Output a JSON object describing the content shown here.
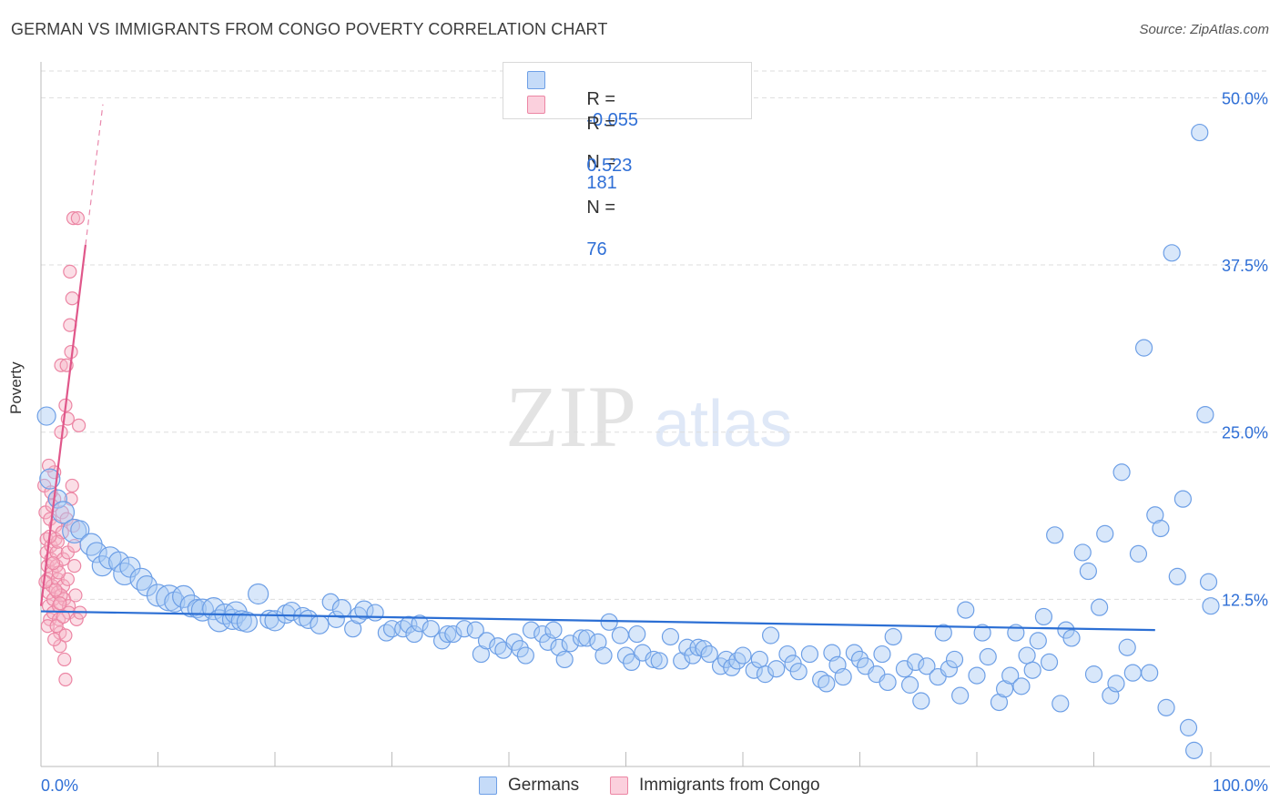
{
  "title": "GERMAN VS IMMIGRANTS FROM CONGO POVERTY CORRELATION CHART",
  "source": "Source: ZipAtlas.com",
  "watermark": {
    "zip": "ZIP",
    "atlas": "atlas"
  },
  "legend": {
    "rows": [
      {
        "r_label": "R =",
        "r_value": "-0.055",
        "n_label": "N =",
        "n_value": "181"
      },
      {
        "r_label": "R =",
        "r_value": "0.523",
        "n_label": "N =",
        "n_value": "76"
      }
    ]
  },
  "colors": {
    "blue_fill": "#a9c9f5",
    "blue_stroke": "#6d9fe6",
    "blue_line": "#2c6fd4",
    "pink_fill": "#f7b5c8",
    "pink_stroke": "#ec86a4",
    "pink_line": "#e0578a",
    "axis_label": "#2f6fd6",
    "grid": "#dddddd"
  },
  "chart_data": {
    "type": "scatter",
    "title": "GERMAN VS IMMIGRANTS FROM CONGO POVERTY CORRELATION CHART",
    "xlabel": "",
    "ylabel": "Poverty",
    "x_tick_labels": [
      "0.0%",
      "100.0%"
    ],
    "y_tick_labels": [
      "12.5%",
      "25.0%",
      "37.5%",
      "50.0%"
    ],
    "y_ticks": [
      12.5,
      25.0,
      37.5,
      50.0
    ],
    "xlim": [
      0,
      105
    ],
    "ylim": [
      0,
      52
    ],
    "grid": true,
    "legend_placement": "top-center",
    "series": [
      {
        "name": "Germans",
        "color": "#6d9fe6",
        "trend": {
          "x0": 0,
          "y0": 11.6,
          "x1": 100,
          "y1": 10.2
        },
        "points": [
          [
            0.5,
            26.2,
            10
          ],
          [
            0.8,
            21.5,
            11
          ],
          [
            1.5,
            20.0,
            10
          ],
          [
            2.0,
            19.0,
            12
          ],
          [
            3.0,
            17.6,
            13
          ],
          [
            3.5,
            17.7,
            10
          ],
          [
            4.5,
            16.6,
            12
          ],
          [
            5.0,
            16.0,
            11
          ],
          [
            5.5,
            15.0,
            11
          ],
          [
            6.2,
            15.6,
            12
          ],
          [
            7.0,
            15.3,
            11
          ],
          [
            7.5,
            14.4,
            12
          ],
          [
            8.0,
            14.9,
            11
          ],
          [
            9.0,
            14.0,
            12
          ],
          [
            9.5,
            13.5,
            11
          ],
          [
            10.5,
            12.8,
            12
          ],
          [
            11.5,
            12.6,
            14
          ],
          [
            12.0,
            12.3,
            11
          ],
          [
            12.8,
            12.7,
            12
          ],
          [
            13.5,
            12.0,
            12
          ],
          [
            14.0,
            11.8,
            10
          ],
          [
            14.5,
            11.7,
            12
          ],
          [
            15.5,
            11.8,
            12
          ],
          [
            16.0,
            10.9,
            12
          ],
          [
            16.5,
            11.4,
            11
          ],
          [
            17.2,
            11.0,
            11
          ],
          [
            17.5,
            11.5,
            12
          ],
          [
            18.0,
            10.9,
            11
          ],
          [
            18.5,
            10.8,
            11
          ],
          [
            19.5,
            12.9,
            11
          ],
          [
            20.5,
            11.0,
            10
          ],
          [
            21.0,
            10.9,
            11
          ],
          [
            22.0,
            11.4,
            10
          ],
          [
            22.5,
            11.6,
            10
          ],
          [
            23.5,
            11.2,
            10
          ],
          [
            24.0,
            11.0,
            10
          ],
          [
            25.0,
            10.6,
            10
          ],
          [
            26.0,
            12.3,
            9
          ],
          [
            26.5,
            11.0,
            9
          ],
          [
            27.0,
            11.8,
            10
          ],
          [
            28.0,
            10.3,
            9
          ],
          [
            28.5,
            11.3,
            9
          ],
          [
            29.0,
            11.7,
            10
          ],
          [
            30.0,
            11.5,
            9
          ],
          [
            31.0,
            10.0,
            9
          ],
          [
            31.5,
            10.3,
            9
          ],
          [
            32.5,
            10.3,
            9
          ],
          [
            33.0,
            10.6,
            9
          ],
          [
            33.5,
            9.9,
            9
          ],
          [
            34.0,
            10.7,
            9
          ],
          [
            35.0,
            10.3,
            9
          ],
          [
            36.0,
            9.4,
            9
          ],
          [
            36.5,
            9.9,
            9
          ],
          [
            37.0,
            9.9,
            9
          ],
          [
            38.0,
            10.3,
            9
          ],
          [
            39.0,
            10.2,
            9
          ],
          [
            39.5,
            8.4,
            9
          ],
          [
            40.0,
            9.4,
            9
          ],
          [
            41.0,
            9.0,
            9
          ],
          [
            41.5,
            8.7,
            9
          ],
          [
            42.5,
            9.3,
            9
          ],
          [
            43.0,
            8.8,
            9
          ],
          [
            43.5,
            8.3,
            9
          ],
          [
            44.0,
            10.2,
            9
          ],
          [
            45.0,
            9.9,
            9
          ],
          [
            45.5,
            9.3,
            9
          ],
          [
            46.0,
            10.2,
            9
          ],
          [
            46.5,
            8.9,
            9
          ],
          [
            47.0,
            8.0,
            9
          ],
          [
            47.5,
            9.2,
            9
          ],
          [
            48.5,
            9.6,
            9
          ],
          [
            49.0,
            9.6,
            9
          ],
          [
            50.0,
            9.3,
            9
          ],
          [
            50.5,
            8.3,
            9
          ],
          [
            51.0,
            10.8,
            9
          ],
          [
            52.0,
            9.8,
            9
          ],
          [
            52.5,
            8.3,
            9
          ],
          [
            53.0,
            7.8,
            9
          ],
          [
            53.5,
            9.9,
            9
          ],
          [
            54.0,
            8.5,
            9
          ],
          [
            55.0,
            8.0,
            9
          ],
          [
            55.5,
            7.9,
            9
          ],
          [
            56.5,
            9.7,
            9
          ],
          [
            57.5,
            7.9,
            9
          ],
          [
            58.0,
            8.9,
            9
          ],
          [
            58.5,
            8.3,
            9
          ],
          [
            59.0,
            8.9,
            9
          ],
          [
            59.5,
            8.8,
            9
          ],
          [
            60.0,
            8.4,
            9
          ],
          [
            61.0,
            7.5,
            9
          ],
          [
            61.5,
            8.0,
            9
          ],
          [
            62.0,
            7.4,
            9
          ],
          [
            62.5,
            7.9,
            9
          ],
          [
            63.0,
            8.3,
            9
          ],
          [
            64.0,
            7.2,
            9
          ],
          [
            64.5,
            8.0,
            9
          ],
          [
            65.0,
            6.9,
            9
          ],
          [
            65.5,
            9.8,
            9
          ],
          [
            66.0,
            7.3,
            9
          ],
          [
            67.0,
            8.4,
            9
          ],
          [
            67.5,
            7.7,
            9
          ],
          [
            68.0,
            7.1,
            9
          ],
          [
            69.0,
            8.4,
            9
          ],
          [
            70.0,
            6.5,
            9
          ],
          [
            70.5,
            6.2,
            9
          ],
          [
            71.0,
            8.5,
            9
          ],
          [
            71.5,
            7.6,
            9
          ],
          [
            72.0,
            6.7,
            9
          ],
          [
            73.0,
            8.5,
            9
          ],
          [
            73.5,
            8.0,
            9
          ],
          [
            74.0,
            7.5,
            9
          ],
          [
            75.0,
            6.9,
            9
          ],
          [
            75.5,
            8.4,
            9
          ],
          [
            76.0,
            6.3,
            9
          ],
          [
            76.5,
            9.7,
            9
          ],
          [
            77.5,
            7.3,
            9
          ],
          [
            78.0,
            6.1,
            9
          ],
          [
            78.5,
            7.8,
            9
          ],
          [
            79.0,
            4.9,
            9
          ],
          [
            79.5,
            7.5,
            9
          ],
          [
            80.5,
            6.7,
            9
          ],
          [
            81.0,
            10.0,
            9
          ],
          [
            81.5,
            7.3,
            9
          ],
          [
            82.0,
            8.0,
            9
          ],
          [
            82.5,
            5.3,
            9
          ],
          [
            83.0,
            11.7,
            9
          ],
          [
            84.0,
            6.8,
            9
          ],
          [
            84.5,
            10.0,
            9
          ],
          [
            85.0,
            8.2,
            9
          ],
          [
            86.0,
            4.8,
            9
          ],
          [
            86.5,
            5.8,
            9
          ],
          [
            87.0,
            6.8,
            9
          ],
          [
            87.5,
            10.0,
            9
          ],
          [
            88.0,
            6.0,
            9
          ],
          [
            88.5,
            8.3,
            9
          ],
          [
            89.0,
            7.2,
            9
          ],
          [
            89.5,
            9.4,
            9
          ],
          [
            90.0,
            11.2,
            9
          ],
          [
            90.5,
            7.8,
            9
          ],
          [
            91.0,
            17.3,
            9
          ],
          [
            91.5,
            4.7,
            9
          ],
          [
            92.0,
            10.2,
            9
          ],
          [
            92.5,
            9.6,
            9
          ],
          [
            93.5,
            16.0,
            9
          ],
          [
            94.0,
            14.6,
            9
          ],
          [
            94.5,
            6.9,
            9
          ],
          [
            95.0,
            11.9,
            9
          ],
          [
            95.5,
            17.4,
            9
          ],
          [
            96.0,
            5.3,
            9
          ],
          [
            96.5,
            6.2,
            9
          ],
          [
            97.0,
            22.0,
            9
          ],
          [
            97.5,
            8.9,
            9
          ],
          [
            98.0,
            7.0,
            9
          ],
          [
            98.5,
            15.9,
            9
          ],
          [
            99.0,
            31.3,
            9
          ],
          [
            99.5,
            7.0,
            9
          ],
          [
            100.0,
            18.8,
            9
          ],
          [
            100.5,
            17.8,
            9
          ],
          [
            101.0,
            4.4,
            9
          ],
          [
            101.5,
            38.4,
            9
          ],
          [
            102.0,
            14.2,
            9
          ],
          [
            102.5,
            20.0,
            9
          ],
          [
            103.0,
            2.9,
            9
          ],
          [
            103.5,
            1.2,
            9
          ],
          [
            104.0,
            47.4,
            9
          ],
          [
            104.5,
            26.3,
            9
          ],
          [
            104.8,
            13.8,
            9
          ],
          [
            105.0,
            12.0,
            9
          ]
        ]
      },
      {
        "name": "Immigrants from Congo",
        "color": "#ec86a4",
        "trend": {
          "x0": 0,
          "y0": 12.0,
          "x1": 4.0,
          "y1": 39.0
        },
        "points": [
          [
            0.3,
            21.0
          ],
          [
            0.4,
            19.0
          ],
          [
            0.5,
            17.0
          ],
          [
            0.5,
            16.0
          ],
          [
            0.6,
            15.0
          ],
          [
            0.6,
            14.0
          ],
          [
            0.7,
            13.0
          ],
          [
            0.7,
            12.0
          ],
          [
            0.8,
            11.0
          ],
          [
            0.8,
            18.5
          ],
          [
            0.9,
            16.5
          ],
          [
            0.9,
            15.5
          ],
          [
            1.0,
            14.5
          ],
          [
            1.0,
            13.5
          ],
          [
            1.1,
            12.5
          ],
          [
            1.1,
            11.5
          ],
          [
            1.2,
            22.0
          ],
          [
            1.2,
            20.0
          ],
          [
            1.3,
            18.0
          ],
          [
            1.3,
            17.0
          ],
          [
            1.4,
            16.0
          ],
          [
            1.4,
            15.0
          ],
          [
            1.5,
            14.0
          ],
          [
            1.5,
            13.0
          ],
          [
            1.6,
            12.0
          ],
          [
            1.6,
            11.0
          ],
          [
            1.7,
            10.0
          ],
          [
            1.7,
            9.0
          ],
          [
            1.8,
            30.0
          ],
          [
            1.8,
            25.0
          ],
          [
            1.9,
            19.0
          ],
          [
            1.9,
            17.5
          ],
          [
            2.0,
            15.5
          ],
          [
            2.0,
            13.5
          ],
          [
            2.1,
            12.5
          ],
          [
            2.1,
            8.0
          ],
          [
            2.2,
            6.5
          ],
          [
            2.2,
            27.0
          ],
          [
            2.3,
            30.0
          ],
          [
            2.3,
            18.5
          ],
          [
            2.4,
            16.0
          ],
          [
            2.4,
            14.0
          ],
          [
            2.5,
            12.0
          ],
          [
            2.5,
            11.5
          ],
          [
            2.6,
            37.0
          ],
          [
            2.6,
            33.0
          ],
          [
            2.7,
            31.0
          ],
          [
            2.7,
            20.0
          ],
          [
            2.8,
            35.0
          ],
          [
            2.8,
            21.0
          ],
          [
            2.9,
            41.0
          ],
          [
            2.9,
            18.0
          ],
          [
            3.0,
            16.5
          ],
          [
            3.0,
            15.0
          ],
          [
            3.1,
            12.8
          ],
          [
            3.2,
            11.0
          ],
          [
            3.3,
            41.0
          ],
          [
            3.4,
            25.5
          ],
          [
            3.5,
            11.5
          ],
          [
            0.4,
            13.8
          ],
          [
            0.6,
            10.5
          ],
          [
            0.7,
            22.5
          ],
          [
            0.9,
            20.5
          ],
          [
            1.0,
            19.5
          ],
          [
            1.2,
            9.5
          ],
          [
            1.4,
            10.5
          ],
          [
            1.6,
            14.5
          ],
          [
            1.8,
            12.8
          ],
          [
            2.0,
            11.2
          ],
          [
            2.2,
            9.8
          ],
          [
            1.5,
            16.8
          ],
          [
            1.1,
            15.2
          ],
          [
            0.8,
            17.2
          ],
          [
            1.3,
            13.2
          ],
          [
            1.7,
            12.2
          ],
          [
            2.4,
            26.0
          ]
        ]
      }
    ]
  }
}
